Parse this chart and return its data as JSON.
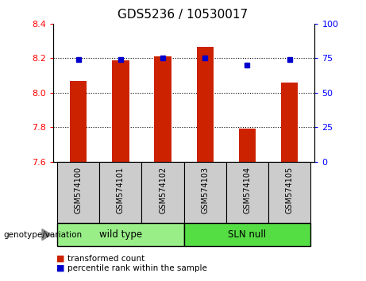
{
  "title": "GDS5236 / 10530017",
  "samples": [
    "GSM574100",
    "GSM574101",
    "GSM574102",
    "GSM574103",
    "GSM574104",
    "GSM574105"
  ],
  "bar_values": [
    8.07,
    8.19,
    8.21,
    8.265,
    7.79,
    8.06
  ],
  "dot_values": [
    74,
    74,
    75,
    75,
    70,
    74
  ],
  "ylim_left": [
    7.6,
    8.4
  ],
  "ylim_right": [
    0,
    100
  ],
  "yticks_left": [
    7.6,
    7.8,
    8.0,
    8.2,
    8.4
  ],
  "yticks_right": [
    0,
    25,
    50,
    75,
    100
  ],
  "bar_color": "#cc2200",
  "dot_color": "#0000cc",
  "bar_bottom": 7.6,
  "groups": [
    {
      "label": "wild type",
      "indices": [
        0,
        1,
        2
      ],
      "color": "#99ee88"
    },
    {
      "label": "SLN null",
      "indices": [
        3,
        4,
        5
      ],
      "color": "#55dd44"
    }
  ],
  "group_label": "genotype/variation",
  "legend_bar_label": "transformed count",
  "legend_dot_label": "percentile rank within the sample",
  "tick_label_area_color": "#cccccc",
  "title_fontsize": 11,
  "tick_fontsize": 8,
  "sample_fontsize": 7
}
